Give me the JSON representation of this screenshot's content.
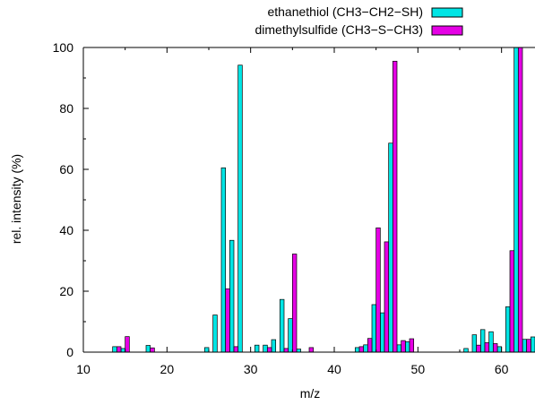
{
  "chart_data": {
    "type": "bar",
    "xlabel": "m/z",
    "ylabel": "rel. intensity (%)",
    "xlim": [
      10,
      64
    ],
    "ylim": [
      0,
      100
    ],
    "xticks": [
      10,
      20,
      30,
      40,
      50,
      60
    ],
    "yticks": [
      0,
      20,
      40,
      60,
      80,
      100
    ],
    "legend_position": "top-right",
    "series": [
      {
        "name": "ethanethiol (CH3−CH2−SH)",
        "color": "#00e5e5",
        "points": [
          {
            "x": 14,
            "y": 1.8
          },
          {
            "x": 15,
            "y": 1.2
          },
          {
            "x": 18,
            "y": 2.2
          },
          {
            "x": 25,
            "y": 1.5
          },
          {
            "x": 26,
            "y": 12.2
          },
          {
            "x": 27,
            "y": 60.5
          },
          {
            "x": 28,
            "y": 36.7
          },
          {
            "x": 29,
            "y": 94.2
          },
          {
            "x": 31,
            "y": 2.3
          },
          {
            "x": 32,
            "y": 2.3
          },
          {
            "x": 33,
            "y": 4.1
          },
          {
            "x": 34,
            "y": 17.3
          },
          {
            "x": 35,
            "y": 11.0
          },
          {
            "x": 36,
            "y": 1.0
          },
          {
            "x": 43,
            "y": 1.5
          },
          {
            "x": 44,
            "y": 2.4
          },
          {
            "x": 45,
            "y": 15.6
          },
          {
            "x": 46,
            "y": 12.9
          },
          {
            "x": 47,
            "y": 68.6
          },
          {
            "x": 48,
            "y": 2.4
          },
          {
            "x": 49,
            "y": 3.4
          },
          {
            "x": 56,
            "y": 1.2
          },
          {
            "x": 57,
            "y": 5.7
          },
          {
            "x": 58,
            "y": 7.4
          },
          {
            "x": 59,
            "y": 6.7
          },
          {
            "x": 60,
            "y": 1.8
          },
          {
            "x": 61,
            "y": 14.9
          },
          {
            "x": 62,
            "y": 100
          },
          {
            "x": 63,
            "y": 4.2
          },
          {
            "x": 64,
            "y": 5.0
          }
        ]
      },
      {
        "name": "dimethylsulfide (CH3−S−CH3)",
        "color": "#e500e5",
        "points": [
          {
            "x": 14,
            "y": 1.8
          },
          {
            "x": 15,
            "y": 5.1
          },
          {
            "x": 18,
            "y": 1.4
          },
          {
            "x": 27,
            "y": 20.8
          },
          {
            "x": 28,
            "y": 1.8
          },
          {
            "x": 32,
            "y": 1.5
          },
          {
            "x": 34,
            "y": 1.2
          },
          {
            "x": 35,
            "y": 32.2
          },
          {
            "x": 37,
            "y": 1.5
          },
          {
            "x": 43,
            "y": 1.8
          },
          {
            "x": 44,
            "y": 4.5
          },
          {
            "x": 45,
            "y": 40.8
          },
          {
            "x": 46,
            "y": 36.2
          },
          {
            "x": 47,
            "y": 95.5
          },
          {
            "x": 48,
            "y": 3.8
          },
          {
            "x": 49,
            "y": 4.4
          },
          {
            "x": 57,
            "y": 2.3
          },
          {
            "x": 58,
            "y": 3.1
          },
          {
            "x": 59,
            "y": 2.8
          },
          {
            "x": 61,
            "y": 33.3
          },
          {
            "x": 62,
            "y": 100
          },
          {
            "x": 63,
            "y": 4.2
          },
          {
            "x": 64,
            "y": 4.8
          }
        ]
      }
    ]
  }
}
